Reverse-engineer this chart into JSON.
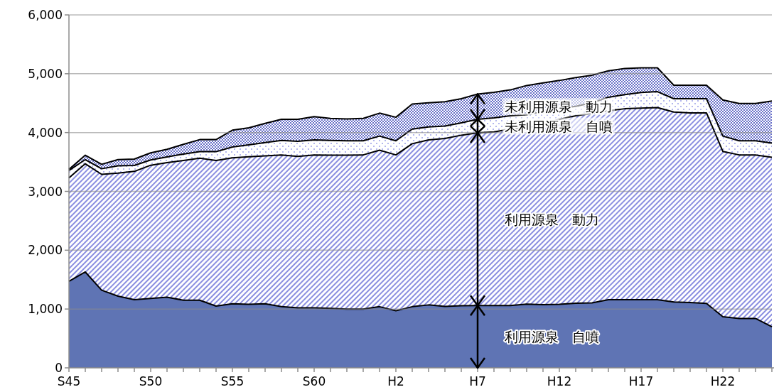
{
  "chart_data": {
    "type": "area",
    "stacked": true,
    "grid": "y",
    "legend": "center",
    "categories": [
      "S45",
      null,
      null,
      null,
      null,
      "S50",
      null,
      null,
      null,
      null,
      "S55",
      null,
      null,
      null,
      null,
      "S60",
      null,
      null,
      null,
      null,
      "H2",
      null,
      null,
      null,
      null,
      "H7",
      null,
      null,
      null,
      null,
      "H12",
      null,
      null,
      null,
      null,
      "H17",
      null,
      null,
      null,
      null,
      "H22",
      null,
      null,
      null
    ],
    "ylim": [
      0,
      6000
    ],
    "yticks": [
      0,
      {
        "value": 1000,
        "label": "1,000"
      },
      {
        "value": 2000,
        "label": "2,000"
      },
      {
        "value": 3000,
        "label": "3,000"
      },
      {
        "value": 4000,
        "label": "4,000"
      },
      {
        "value": 5000,
        "label": "5,000"
      },
      {
        "value": 6000,
        "label": "6,000"
      }
    ],
    "series": [
      {
        "name": "利用源泉　自噴",
        "color": "#5f74b4",
        "values": [
          1470,
          1630,
          1320,
          1220,
          1160,
          1180,
          1200,
          1150,
          1150,
          1050,
          1090,
          1080,
          1090,
          1040,
          1020,
          1020,
          1010,
          1000,
          1000,
          1040,
          970,
          1040,
          1070,
          1045,
          1055,
          1060,
          1060,
          1060,
          1085,
          1075,
          1080,
          1100,
          1105,
          1160,
          1160,
          1160,
          1160,
          1120,
          1110,
          1095,
          870,
          840,
          840,
          700
        ]
      },
      {
        "name": "利用源泉　動力",
        "color": "#8a8ee0",
        "values": [
          1760,
          1840,
          1970,
          2090,
          2180,
          2265,
          2290,
          2375,
          2415,
          2475,
          2480,
          2510,
          2515,
          2580,
          2575,
          2600,
          2605,
          2615,
          2620,
          2660,
          2650,
          2770,
          2805,
          2855,
          2900,
          2935,
          2950,
          3000,
          2995,
          3065,
          3145,
          3185,
          3220,
          3210,
          3245,
          3255,
          3265,
          3230,
          3225,
          3240,
          2810,
          2780,
          2780,
          2880
        ]
      },
      {
        "name": "未利用源泉　自噴",
        "color": "#9a9ee8",
        "values": [
          125,
          70,
          95,
          125,
          100,
          90,
          95,
          110,
          110,
          150,
          185,
          200,
          225,
          245,
          255,
          255,
          250,
          245,
          240,
          240,
          240,
          250,
          220,
          210,
          210,
          230,
          240,
          225,
          225,
          215,
          185,
          160,
          180,
          230,
          240,
          265,
          270,
          225,
          240,
          240,
          260,
          240,
          240,
          240
        ]
      },
      {
        "name": "未利用源泉　動力",
        "color": "#6870c8",
        "values": [
          20,
          75,
          75,
          105,
          110,
          120,
          130,
          165,
          205,
          205,
          285,
          290,
          325,
          360,
          375,
          395,
          375,
          370,
          380,
          390,
          400,
          425,
          410,
          415,
          410,
          430,
          435,
          440,
          495,
          490,
          475,
          490,
          470,
          450,
          445,
          420,
          405,
          230,
          230,
          230,
          615,
          635,
          635,
          715
        ]
      }
    ]
  }
}
